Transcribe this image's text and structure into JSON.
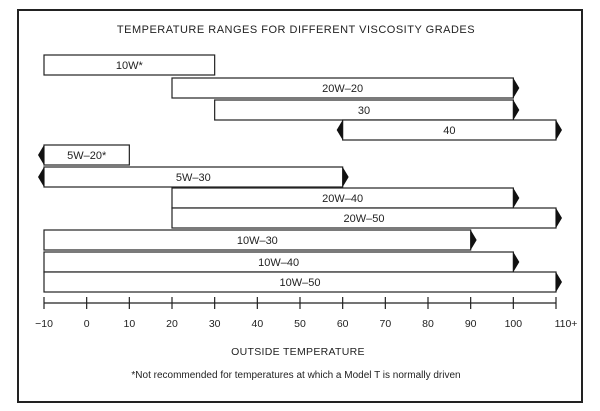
{
  "chart_data": {
    "type": "bar",
    "orientation": "horizontal-range",
    "title": "TEMPERATURE RANGES FOR DIFFERENT VISCOSITY GRADES",
    "xlabel": "OUTSIDE TEMPERATURE",
    "footnote": "*Not recommended for temperatures at which a Model T is normally driven",
    "xlim": [
      -10,
      110
    ],
    "tick_values": [
      -10,
      0,
      10,
      20,
      30,
      40,
      50,
      60,
      70,
      80,
      90,
      100,
      110
    ],
    "tick_labels": [
      "−10",
      "0",
      "10",
      "20",
      "30",
      "40",
      "50",
      "60",
      "70",
      "80",
      "90",
      "100",
      "110+"
    ],
    "series": [
      {
        "name": "10W*",
        "from": -10,
        "to": 30,
        "arrow_left": false,
        "arrow_right": false
      },
      {
        "name": "20W–20",
        "from": 20,
        "to": 100,
        "arrow_left": false,
        "arrow_right": true
      },
      {
        "name": "30",
        "from": 30,
        "to": 100,
        "arrow_left": false,
        "arrow_right": true
      },
      {
        "name": "40",
        "from": 60,
        "to": 110,
        "arrow_left": true,
        "arrow_right": true
      },
      {
        "name": "5W–20*",
        "from": -10,
        "to": 10,
        "arrow_left": true,
        "arrow_right": false
      },
      {
        "name": "5W–30",
        "from": -10,
        "to": 60,
        "arrow_left": true,
        "arrow_right": true
      },
      {
        "name": "20W–40",
        "from": 20,
        "to": 100,
        "arrow_left": false,
        "arrow_right": true
      },
      {
        "name": "20W–50",
        "from": 20,
        "to": 110,
        "arrow_left": false,
        "arrow_right": true
      },
      {
        "name": "10W–30",
        "from": -10,
        "to": 90,
        "arrow_left": false,
        "arrow_right": true
      },
      {
        "name": "10W–40",
        "from": -10,
        "to": 100,
        "arrow_left": false,
        "arrow_right": true
      },
      {
        "name": "10W–50",
        "from": -10,
        "to": 110,
        "arrow_left": false,
        "arrow_right": true
      }
    ]
  }
}
